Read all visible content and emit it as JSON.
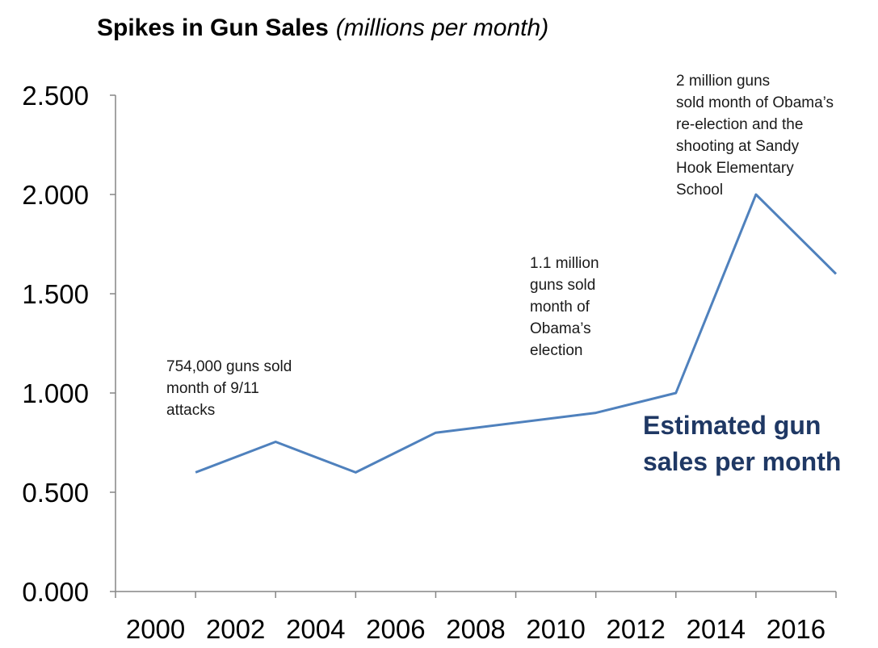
{
  "chart_data": {
    "type": "line",
    "title": "Spikes in Gun Sales",
    "subtitle": "(millions per month)",
    "y_ticks": [
      "0.000",
      "0.500",
      "1.000",
      "1.500",
      "2.000",
      "2.500"
    ],
    "ylim": [
      0,
      2.5
    ],
    "x_ticks": [
      "2000",
      "2002",
      "2004",
      "2006",
      "2008",
      "2010",
      "2012",
      "2014",
      "2016"
    ],
    "x_tick_values": [
      2000,
      2002,
      2004,
      2006,
      2008,
      2010,
      2012,
      2014,
      2016
    ],
    "xlim": [
      1999,
      2017
    ],
    "grid": false,
    "series": [
      {
        "name": "Estimated gun sales per month",
        "color": "#4f81bd",
        "x": [
          2001,
          2003,
          2005,
          2007,
          2011,
          2013,
          2015,
          2017
        ],
        "y": [
          0.6,
          0.754,
          0.6,
          0.8,
          0.9,
          1.0,
          2.0,
          1.6
        ]
      }
    ],
    "series_label_lines": [
      "Estimated gun",
      "sales per month"
    ],
    "series_label_color": "#1f3864",
    "annotations": [
      {
        "lines": [
          "754,000 guns sold",
          "month of 9/11",
          "attacks"
        ]
      },
      {
        "lines": [
          "1.1 million",
          "guns sold",
          "month of",
          "Obama’s",
          "election"
        ]
      },
      {
        "lines": [
          "2 million guns",
          "sold month of Obama’s",
          "re-election and the",
          "shooting  at Sandy",
          "Hook Elementary",
          "School"
        ]
      }
    ]
  }
}
